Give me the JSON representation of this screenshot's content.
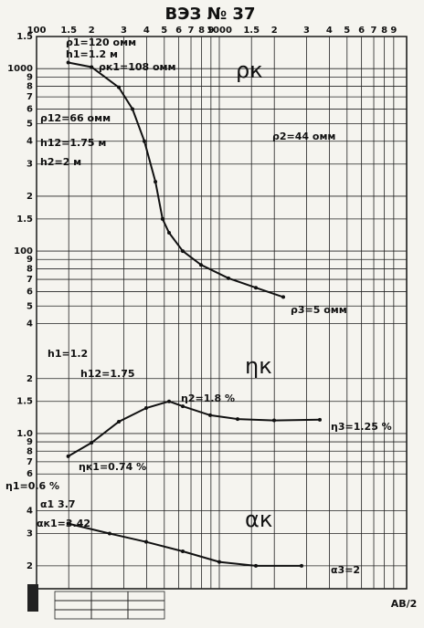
{
  "chart_data": [
    {
      "type": "line",
      "title": "ВЭЗ № 37",
      "xlabel": "AB/2",
      "log_x": true,
      "log_y": true,
      "grid": true,
      "color": "#111111",
      "xlim": [
        100,
        10000
      ],
      "xticks": [
        {
          "value": 100,
          "label": "100"
        },
        {
          "value": 150,
          "label": "1.5"
        },
        {
          "value": 200,
          "label": "2"
        },
        {
          "value": 300,
          "label": "3"
        },
        {
          "value": 400,
          "label": "4"
        },
        {
          "value": 500,
          "label": "5"
        },
        {
          "value": 600,
          "label": "6"
        },
        {
          "value": 700,
          "label": "7"
        },
        {
          "value": 800,
          "label": "8"
        },
        {
          "value": 900,
          "label": "9"
        },
        {
          "value": 1000,
          "label": "1000"
        },
        {
          "value": 1500,
          "label": "1.5"
        },
        {
          "value": 2000,
          "label": "2"
        },
        {
          "value": 3000,
          "label": "3"
        },
        {
          "value": 4000,
          "label": "4"
        },
        {
          "value": 5000,
          "label": "5"
        },
        {
          "value": 6000,
          "label": "6"
        },
        {
          "value": 7000,
          "label": "7"
        },
        {
          "value": 8000,
          "label": "8"
        },
        {
          "value": 9000,
          "label": "9"
        }
      ],
      "ylim": [
        32,
        1500
      ],
      "yticks": [
        {
          "value": 1500,
          "label": "1.5"
        },
        1000,
        {
          "value": 900,
          "label": "9"
        },
        {
          "value": 800,
          "label": "8"
        },
        {
          "value": 700,
          "label": "7"
        },
        {
          "value": 600,
          "label": "6"
        },
        {
          "value": 500,
          "label": "5"
        },
        {
          "value": 400,
          "label": "4"
        },
        {
          "value": 300,
          "label": "3"
        },
        {
          "value": 200,
          "label": "2"
        },
        {
          "value": 150,
          "label": "1.5"
        },
        100,
        {
          "value": 90,
          "label": "9"
        },
        {
          "value": 80,
          "label": "8"
        },
        {
          "value": 70,
          "label": "7"
        },
        {
          "value": 60,
          "label": "6"
        },
        {
          "value": 50,
          "label": "5"
        },
        {
          "value": 40,
          "label": "4"
        }
      ],
      "x": [
        149,
        200,
        282,
        335,
        389,
        447,
        489,
        531,
        631,
        794,
        1122,
        1585,
        2239
      ],
      "series": [
        {
          "name": "ρк",
          "values": [
            1080,
            1020,
            790,
            600,
            400,
            240,
            150,
            126,
            100,
            84,
            71,
            63,
            56
          ]
        }
      ],
      "annotations": [
        "ρ1=120 омм",
        "h1=1.2 м",
        "ρк1=108 омм",
        "ρ12=66 омм",
        "h12=1.75 м",
        "h2=2 м",
        "ρ2=44 омм",
        "ρ3=5 омм"
      ]
    },
    {
      "type": "line",
      "log_y": true,
      "grid": true,
      "color": "#111111",
      "ylim": [
        0.53,
        3.2
      ],
      "yticks": [
        2,
        1.5,
        {
          "value": 1,
          "label": "1.0"
        },
        {
          "value": 0.9,
          "label": "9"
        },
        {
          "value": 0.8,
          "label": "8"
        },
        {
          "value": 0.7,
          "label": "7"
        },
        {
          "value": 0.6,
          "label": "6"
        }
      ],
      "x": [
        149,
        200,
        282,
        398,
        531,
        631,
        891,
        1259,
        1995,
        3548
      ],
      "series": [
        {
          "name": "ηк",
          "values": [
            0.75,
            0.89,
            1.16,
            1.38,
            1.5,
            1.41,
            1.26,
            1.2,
            1.18,
            1.19
          ]
        }
      ],
      "annotations": [
        "h1=1.2",
        "h12=1.75",
        "η2=1.8 %",
        "η3=1.25 %",
        "ηк1=0.74 %",
        "η1=0.6 %"
      ]
    },
    {
      "type": "line",
      "log_y": true,
      "grid": true,
      "color": "#111111",
      "ylim": [
        1.5,
        5.6
      ],
      "yticks": [
        4,
        3,
        2
      ],
      "x": [
        149,
        251,
        398,
        631,
        1000,
        1585,
        2818
      ],
      "series": [
        {
          "name": "αк",
          "values": [
            3.4,
            3.0,
            2.7,
            2.4,
            2.1,
            2.0,
            2.0
          ]
        }
      ],
      "annotations": [
        "α1 3.7",
        "αк1=3.42",
        "α3=2"
      ]
    }
  ]
}
